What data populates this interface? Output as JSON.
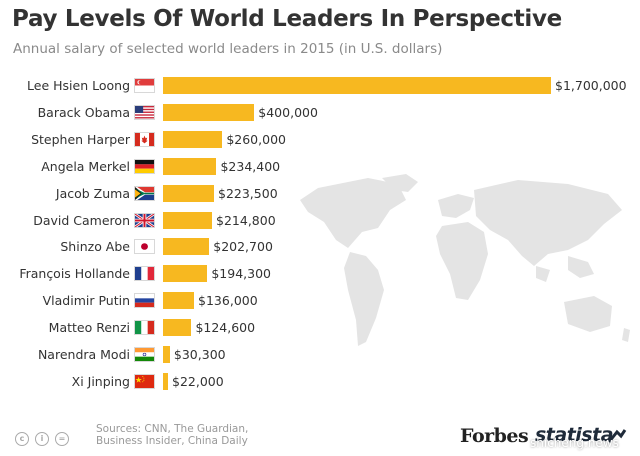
{
  "title": "Pay Levels Of World Leaders In Perspective",
  "subtitle": "Annual salary of selected world leaders in 2015 (in U.S. dollars)",
  "chart_data": {
    "type": "bar",
    "orientation": "horizontal",
    "title": "Pay Levels Of World Leaders In Perspective",
    "subtitle": "Annual salary of selected world leaders in 2015 (in U.S. dollars)",
    "categories": [
      "Lee Hsien Loong",
      "Barack Obama",
      "Stephen Harper",
      "Angela Merkel",
      "Jacob Zuma",
      "David Cameron",
      "Shinzo Abe",
      "François Hollande",
      "Vladimir Putin",
      "Matteo Renzi",
      "Narendra Modi",
      "Xi Jinping"
    ],
    "values": [
      1700000,
      400000,
      260000,
      234400,
      223500,
      214800,
      202700,
      194300,
      136000,
      124600,
      30300,
      22000
    ],
    "value_labels": [
      "$1,700,000",
      "$400,000",
      "$260,000",
      "$234,400",
      "$223,500",
      "$214,800",
      "$202,700",
      "$194,300",
      "$136,000",
      "$124,600",
      "$30,300",
      "$22,000"
    ],
    "flags": [
      "singapore",
      "usa",
      "canada",
      "germany",
      "south-africa",
      "uk",
      "japan",
      "france",
      "russia",
      "italy",
      "india",
      "china"
    ],
    "xlim": [
      0,
      1700000
    ],
    "bar_color": "#f7b820",
    "grid": false,
    "legend": "none"
  },
  "footer": {
    "sources_line1": "Sources: CNN, The Guardian,",
    "sources_line2": "Business Insider, China Daily",
    "forbes": "Forbes",
    "statista": "statista",
    "watermark": "shicheng.news",
    "icons": [
      "cc-icon",
      "by-icon",
      "nd-icon"
    ]
  }
}
